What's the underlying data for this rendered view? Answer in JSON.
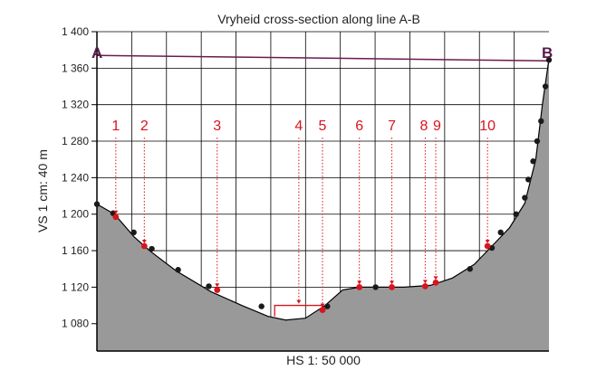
{
  "chart_data": {
    "type": "area",
    "title": "Vryheid cross-section along line A-B",
    "xlabel": "HS 1: 50 000",
    "ylabel": "VS 1 cm: 40 m",
    "ylim": [
      1050,
      1400
    ],
    "xlim": [
      0,
      10.3
    ],
    "yticks": [
      1080,
      1120,
      1160,
      1200,
      1240,
      1280,
      1320,
      1360,
      1400
    ],
    "ytick_labels": [
      "1 080",
      "1 120",
      "1 160",
      "1 200",
      "1 240",
      "1 280",
      "1 320",
      "1 360",
      "1 400"
    ],
    "grid": true,
    "colors": {
      "fill": "#999999",
      "outline": "#000000",
      "line_ab": "#6b1a4f",
      "endpoint_label": "#5a1a4a",
      "marker": "#d8141f",
      "black_point": "#1a1a1a"
    },
    "profile": {
      "x": [
        0.0,
        0.4,
        0.85,
        1.2,
        1.8,
        2.6,
        3.3,
        3.9,
        4.3,
        4.75,
        5.2,
        5.6,
        6.0,
        6.5,
        7.0,
        7.6,
        8.1,
        8.6,
        9.0,
        9.4,
        9.75,
        10.0,
        10.15,
        10.3
      ],
      "y": [
        1211,
        1200,
        1175,
        1160,
        1138,
        1115,
        1100,
        1088,
        1084,
        1086,
        1100,
        1117,
        1120,
        1120,
        1120,
        1122,
        1130,
        1145,
        1165,
        1185,
        1212,
        1260,
        1320,
        1370
      ]
    },
    "black_points": {
      "x": [
        0.0,
        0.37,
        0.84,
        1.25,
        1.85,
        2.55,
        3.75,
        5.25,
        6.35,
        8.5,
        9.0,
        9.2,
        9.55,
        9.75,
        9.83,
        9.94,
        10.03,
        10.12,
        10.22,
        10.3
      ],
      "y": [
        1211,
        1201,
        1180,
        1162,
        1139,
        1121,
        1099,
        1099,
        1120,
        1140,
        1163,
        1180,
        1200,
        1218,
        1238,
        1258,
        1280,
        1302,
        1340,
        1369
      ]
    },
    "markers": {
      "labels": [
        "1",
        "2",
        "3",
        "4",
        "5",
        "6",
        "7",
        "8",
        "9",
        "10"
      ],
      "x": [
        0.43,
        1.08,
        2.74,
        null,
        5.14,
        5.98,
        6.72,
        7.48,
        7.72,
        8.9
      ],
      "y": [
        1197,
        1165,
        1117,
        null,
        1095,
        1120,
        1120,
        1121,
        1125,
        1165
      ]
    },
    "line_ab": {
      "start_label": "A",
      "end_label": "B",
      "x": [
        0.0,
        10.3
      ],
      "y": [
        1374,
        1368
      ]
    }
  }
}
